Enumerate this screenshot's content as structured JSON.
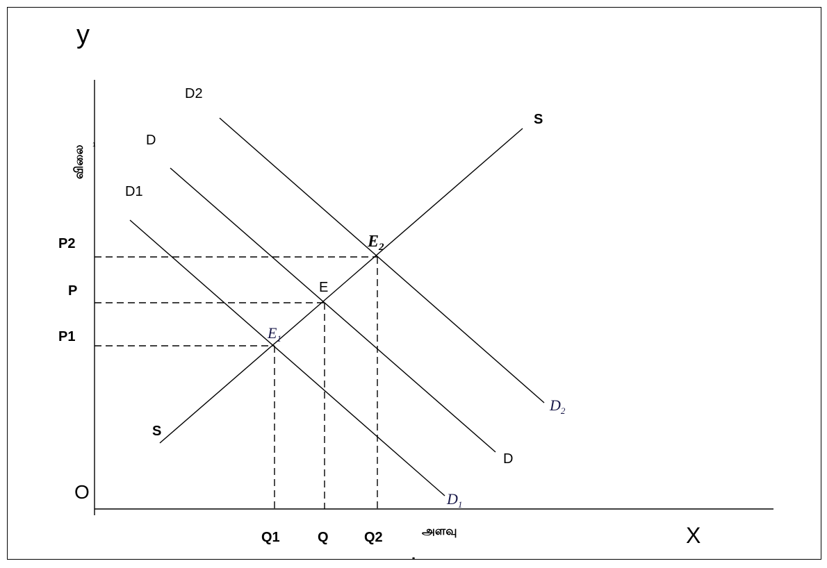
{
  "axes": {
    "y_axis_letter": "y",
    "x_axis_letter": "X",
    "origin": "O",
    "y_axis_title": "விலை",
    "x_axis_title": "அளவு"
  },
  "curves": {
    "supply_top": "S",
    "supply_bottom": "S",
    "demand_top": "D",
    "demand_bottom": "D",
    "demand1_top": "D1",
    "demand1_bottom": "D",
    "demand1_bottom_sub": "1",
    "demand2_top": "D2",
    "demand2_bottom": "D",
    "demand2_bottom_sub": "2"
  },
  "equilibria": {
    "e": "E",
    "e1": "E",
    "e1_sub": "1",
    "e2": "E",
    "e2_sub": "2"
  },
  "price_labels": [
    "P2",
    "P",
    "P1"
  ],
  "quantity_labels": [
    "Q1",
    "Q",
    "Q2"
  ],
  "stray_marks": {
    "small_one": "1",
    "dot": "."
  }
}
